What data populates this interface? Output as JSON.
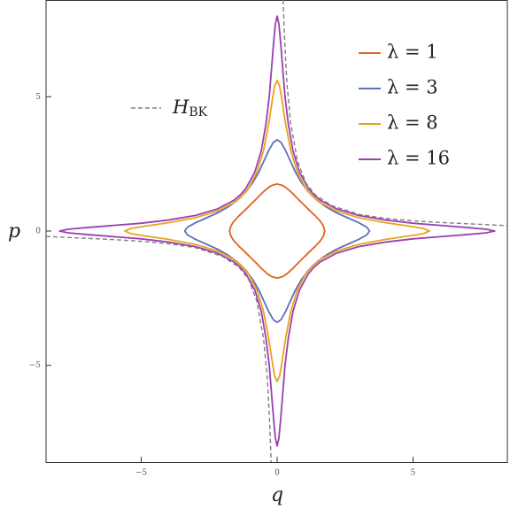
{
  "chart_data": {
    "type": "line",
    "x_label": "q",
    "y_label": "p",
    "xlim": [
      -8.5,
      8.5
    ],
    "ylim": [
      -8.6,
      8.6
    ],
    "xticks": [
      {
        "value": -5,
        "label": "−5"
      },
      0,
      5
    ],
    "yticks": [
      {
        "value": -5,
        "label": "−5"
      },
      0,
      5
    ],
    "legend": "upper right",
    "series": [
      {
        "name": "λ = 1",
        "color": "#e0621c",
        "x": [
          1.75,
          1.7,
          1.6,
          1.4,
          1.2,
          1.0,
          0.96,
          0.76,
          0.57,
          0.35,
          0.19,
          0,
          -0.19,
          -0.35,
          -0.57,
          -0.76,
          -0.96,
          -1.0,
          -1.2,
          -1.4,
          -1.6,
          -1.7,
          -1.75,
          -1.7,
          -1.6,
          -1.4,
          -1.2,
          -1.0,
          -0.96,
          -0.76,
          -0.57,
          -0.35,
          -0.19,
          0,
          0.19,
          0.35,
          0.57,
          0.76,
          0.96,
          1.0,
          1.2,
          1.4,
          1.6,
          1.7
        ],
        "values": [
          0,
          0.19,
          0.35,
          0.57,
          0.76,
          0.96,
          1.0,
          1.2,
          1.4,
          1.6,
          1.7,
          1.75,
          1.7,
          1.6,
          1.4,
          1.2,
          1.0,
          0.96,
          0.76,
          0.57,
          0.35,
          0.19,
          0,
          -0.19,
          -0.35,
          -0.57,
          -0.76,
          -0.96,
          -1.0,
          -1.2,
          -1.4,
          -1.6,
          -1.7,
          -1.75,
          -1.7,
          -1.6,
          -1.4,
          -1.2,
          -1.0,
          -0.96,
          -0.76,
          -0.57,
          -0.35,
          -0.19
        ]
      },
      {
        "name": "λ = 3",
        "color": "#5b6fc2",
        "x": [
          3.4,
          3.3,
          3.0,
          2.6,
          2.2,
          1.8,
          1.5,
          1.3,
          1.12,
          0.9,
          0.67,
          0.49,
          0.31,
          0.14,
          0,
          -0.14,
          -0.31,
          -0.49,
          -0.67,
          -0.9,
          -1.12,
          -1.3,
          -1.5,
          -1.8,
          -2.2,
          -2.6,
          -3.0,
          -3.3,
          -3.4,
          -3.3,
          -3.0,
          -2.6,
          -2.2,
          -1.8,
          -1.5,
          -1.3,
          -1.12,
          -0.9,
          -0.67,
          -0.49,
          -0.31,
          -0.14,
          0,
          0.14,
          0.31,
          0.49,
          0.67,
          0.9,
          1.12,
          1.3,
          1.5,
          1.8,
          2.2,
          2.6,
          3.0,
          3.3
        ],
        "values": [
          0,
          0.14,
          0.31,
          0.49,
          0.67,
          0.9,
          1.12,
          1.3,
          1.5,
          1.8,
          2.2,
          2.6,
          3.0,
          3.3,
          3.4,
          3.3,
          3.0,
          2.6,
          2.2,
          1.8,
          1.5,
          1.3,
          1.12,
          0.9,
          0.67,
          0.49,
          0.31,
          0.14,
          0,
          -0.14,
          -0.31,
          -0.49,
          -0.67,
          -0.9,
          -1.12,
          -1.3,
          -1.5,
          -1.8,
          -2.2,
          -2.6,
          -3.0,
          -3.3,
          -3.4,
          -3.3,
          -3.0,
          -2.6,
          -2.2,
          -1.8,
          -1.5,
          -1.3,
          -1.12,
          -0.9,
          -0.67,
          -0.49,
          -0.31,
          -0.14
        ]
      },
      {
        "name": "λ = 8",
        "color": "#e8a21e",
        "x": [
          5.6,
          5.4,
          5.0,
          4.0,
          3.0,
          2.2,
          1.6,
          1.3,
          1.05,
          0.74,
          0.5,
          0.31,
          0.16,
          0.09,
          0,
          -0.09,
          -0.16,
          -0.31,
          -0.5,
          -0.74,
          -1.05,
          -1.3,
          -1.6,
          -2.2,
          -3.0,
          -4.0,
          -5.0,
          -5.4,
          -5.6,
          -5.4,
          -5.0,
          -4.0,
          -3.0,
          -2.2,
          -1.6,
          -1.3,
          -1.05,
          -0.74,
          -0.5,
          -0.31,
          -0.16,
          -0.09,
          0,
          0.09,
          0.16,
          0.31,
          0.5,
          0.74,
          1.05,
          1.3,
          1.6,
          2.2,
          3.0,
          4.0,
          5.0,
          5.4
        ],
        "values": [
          0,
          0.09,
          0.16,
          0.31,
          0.5,
          0.74,
          1.05,
          1.3,
          1.6,
          2.2,
          3.0,
          4.0,
          5.0,
          5.4,
          5.6,
          5.4,
          5.0,
          4.0,
          3.0,
          2.2,
          1.6,
          1.3,
          1.05,
          0.74,
          0.5,
          0.31,
          0.16,
          0.09,
          0,
          -0.09,
          -0.16,
          -0.31,
          -0.5,
          -0.74,
          -1.05,
          -1.3,
          -1.6,
          -2.2,
          -3.0,
          -4.0,
          -5.0,
          -5.4,
          -5.6,
          -5.4,
          -5.0,
          -4.0,
          -3.0,
          -2.2,
          -1.6,
          -1.3,
          -1.05,
          -0.74,
          -0.5,
          -0.31,
          -0.16,
          -0.09
        ]
      },
      {
        "name": "λ = 16",
        "color": "#9a3fb0",
        "x": [
          8,
          7.7,
          7,
          6,
          5,
          4,
          3,
          2.2,
          1.6,
          1.35,
          1.14,
          0.82,
          0.58,
          0.41,
          0.29,
          0.21,
          0.13,
          0.066,
          0,
          -0.066,
          -0.13,
          -0.21,
          -0.29,
          -0.41,
          -0.58,
          -0.82,
          -1.14,
          -1.35,
          -1.6,
          -2.2,
          -3,
          -4,
          -5,
          -6,
          -7,
          -7.7,
          -8,
          -7.7,
          -7,
          -6,
          -5,
          -4,
          -3,
          -2.2,
          -1.6,
          -1.35,
          -1.14,
          -0.82,
          -0.58,
          -0.41,
          -0.29,
          -0.21,
          -0.13,
          -0.066,
          0,
          0.066,
          0.13,
          0.21,
          0.29,
          0.41,
          0.58,
          0.82,
          1.14,
          1.35,
          1.6,
          2.2,
          3,
          4,
          5,
          6,
          7,
          7.7
        ],
        "values": [
          0,
          0.066,
          0.13,
          0.21,
          0.29,
          0.41,
          0.58,
          0.82,
          1.14,
          1.35,
          1.6,
          2.2,
          3,
          4,
          5,
          6,
          7,
          7.7,
          8,
          7.7,
          7,
          6,
          5,
          4,
          3,
          2.2,
          1.6,
          1.35,
          1.14,
          0.82,
          0.58,
          0.41,
          0.29,
          0.21,
          0.13,
          0.066,
          0,
          -0.066,
          -0.13,
          -0.21,
          -0.29,
          -0.41,
          -0.58,
          -0.82,
          -1.14,
          -1.35,
          -1.6,
          -2.2,
          -3,
          -4,
          -5,
          -6,
          -7,
          -7.7,
          -8,
          -7.7,
          -7,
          -6,
          -5,
          -4,
          -3,
          -2.2,
          -1.6,
          -1.35,
          -1.14,
          -0.82,
          -0.58,
          -0.41,
          -0.29,
          -0.21,
          -0.13,
          -0.066
        ]
      },
      {
        "name": "H",
        "subscript": "BK",
        "color": "#808080",
        "dash": true,
        "x": [
          0.22,
          0.28,
          0.36,
          0.5,
          0.75,
          1.05,
          1.4,
          2,
          3,
          4,
          5,
          6,
          7,
          8.5,
          null,
          -8.5,
          -7,
          -6,
          -5,
          -4,
          -3,
          -2,
          -1.4,
          -1.05,
          -0.75,
          -0.5,
          -0.36,
          -0.28,
          -0.22
        ],
        "values": [
          8.6,
          7,
          5.5,
          4,
          2.6,
          1.8,
          1.35,
          0.95,
          0.62,
          0.47,
          0.38,
          0.32,
          0.27,
          0.2,
          null,
          -0.2,
          -0.27,
          -0.32,
          -0.38,
          -0.47,
          -0.62,
          -0.95,
          -1.35,
          -1.8,
          -2.6,
          -4,
          -5.5,
          -7,
          -8.6
        ]
      }
    ]
  }
}
